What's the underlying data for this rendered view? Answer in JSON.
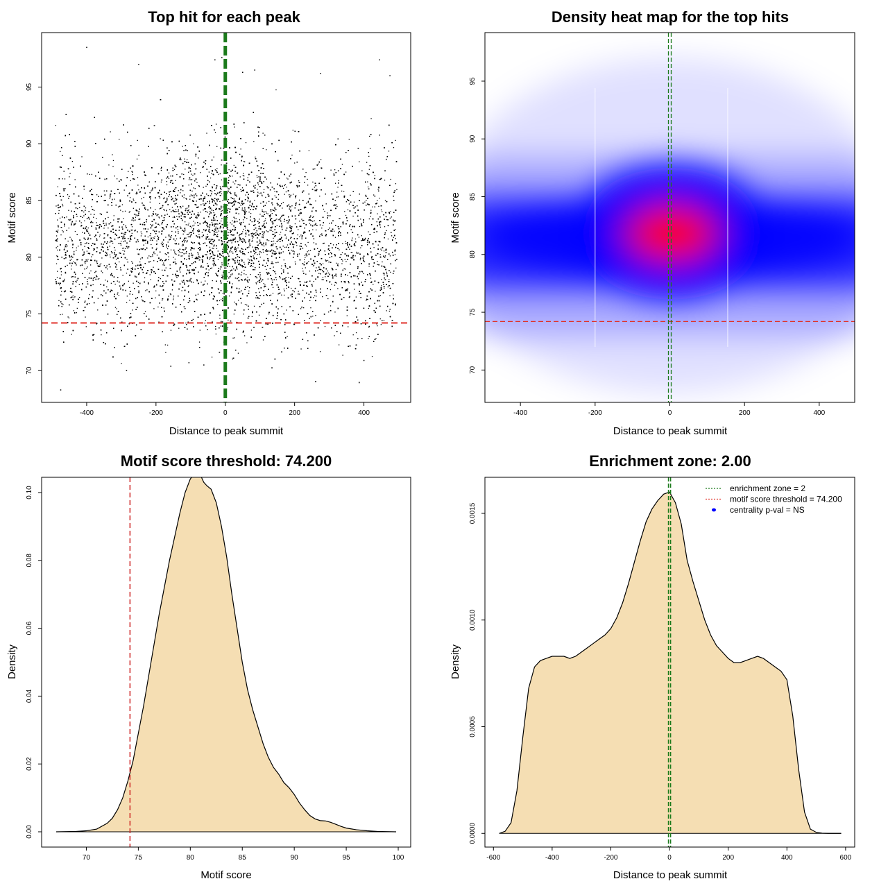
{
  "chart_data": [
    {
      "panel": "top-left",
      "type": "scatter",
      "title": "Top hit for each peak",
      "xlabel": "Distance to peak summit",
      "ylabel": "Motif score",
      "xlim": [
        -530,
        535
      ],
      "ylim": [
        67.2,
        99.8
      ],
      "xticks": [
        -400,
        -200,
        0,
        200,
        400
      ],
      "yticks": [
        70,
        75,
        80,
        85,
        90,
        95
      ],
      "x_range_of_points": [
        -490,
        495
      ],
      "y_center": 81,
      "point_count_approx": 20000,
      "outlier_points": [
        {
          "x": -475,
          "y": 68.3
        },
        {
          "x": -400,
          "y": 98.5
        },
        {
          "x": -10,
          "y": 97.6
        },
        {
          "x": -30,
          "y": 97.4
        },
        {
          "x": -250,
          "y": 97.0
        },
        {
          "x": 445,
          "y": 97.4
        },
        {
          "x": 275,
          "y": 96.2
        },
        {
          "x": 50,
          "y": 96.3
        },
        {
          "x": 85,
          "y": 96.5
        },
        {
          "x": -285,
          "y": 70.0
        },
        {
          "x": -105,
          "y": 70.7
        },
        {
          "x": -62,
          "y": 70.5
        },
        {
          "x": 400,
          "y": 70.9
        },
        {
          "x": 475,
          "y": 96.0
        }
      ],
      "threshold_line": {
        "y": 74.2,
        "color": "#e0322b",
        "style": "dashed"
      },
      "center_line": {
        "x": 0,
        "color": "#1b7a1b",
        "style": "dashed"
      }
    },
    {
      "panel": "top-right",
      "type": "heatmap",
      "title": "Density heat map for the top hits",
      "xlabel": "Distance to peak summit",
      "ylabel": "Motif score",
      "xlim": [
        -495,
        495
      ],
      "ylim": [
        67.2,
        99.2
      ],
      "xticks": [
        -400,
        -200,
        0,
        200,
        400
      ],
      "yticks": [
        70,
        75,
        80,
        85,
        90,
        95
      ],
      "peak_center": {
        "x": 5,
        "y": 81.8
      },
      "low_color": "#ffffff",
      "mid_color": "#0000ff",
      "high_color": "#ff0000",
      "threshold_line": {
        "y": 74.2,
        "color": "#e0322b",
        "style": "dashed"
      },
      "center_line": {
        "x": 0,
        "color": "#1b7a1b",
        "style": "dashed"
      }
    },
    {
      "panel": "bottom-left",
      "type": "area",
      "title": "Motif score threshold: 74.200",
      "xlabel": "Motif score",
      "ylabel": "Density",
      "xlim": [
        65.7,
        101.2
      ],
      "ylim": [
        -0.0045,
        0.1045
      ],
      "xticks": [
        70,
        75,
        80,
        85,
        90,
        95,
        100
      ],
      "ytick_labels": [
        "0.00",
        "0.02",
        "0.04",
        "0.06",
        "0.08",
        "0.10"
      ],
      "ytick_values": [
        0,
        0.02,
        0.04,
        0.06,
        0.08,
        0.1
      ],
      "x": [
        67.1,
        69,
        70,
        71,
        72,
        72.5,
        73,
        73.5,
        74,
        74.5,
        75,
        75.5,
        76,
        76.5,
        77,
        77.5,
        78,
        78.5,
        79,
        79.5,
        80,
        80.5,
        81,
        81.3,
        81.6,
        82,
        82.5,
        83,
        83.5,
        84,
        84.5,
        85,
        85.5,
        86,
        86.5,
        87,
        87.5,
        88,
        88.5,
        89,
        89.5,
        90,
        90.5,
        91,
        91.5,
        92,
        92.5,
        93,
        93.5,
        94,
        94.5,
        95,
        96,
        97,
        98,
        99.8
      ],
      "values": [
        0,
        0.0001,
        0.0003,
        0.0008,
        0.0025,
        0.004,
        0.0065,
        0.01,
        0.015,
        0.021,
        0.029,
        0.037,
        0.046,
        0.055,
        0.064,
        0.072,
        0.08,
        0.087,
        0.094,
        0.1,
        0.104,
        0.106,
        0.105,
        0.103,
        0.102,
        0.101,
        0.097,
        0.09,
        0.081,
        0.07,
        0.06,
        0.05,
        0.042,
        0.036,
        0.031,
        0.026,
        0.022,
        0.019,
        0.017,
        0.0145,
        0.013,
        0.011,
        0.0085,
        0.0065,
        0.0048,
        0.0038,
        0.0033,
        0.0032,
        0.0028,
        0.0022,
        0.0016,
        0.0011,
        0.0006,
        0.0003,
        0.0001,
        0
      ],
      "fill": "#f5deb3",
      "threshold_line": {
        "x": 74.2,
        "color": "#cc2222",
        "style": "dashed"
      }
    },
    {
      "panel": "bottom-right",
      "type": "area",
      "title": "Enrichment zone: 2.00",
      "xlabel": "Distance to peak summit",
      "ylabel": "Density",
      "xlim": [
        -629,
        631
      ],
      "ylim": [
        -6.42e-05,
        0.001669
      ],
      "xticks": [
        -600,
        -400,
        -200,
        0,
        200,
        400,
        600
      ],
      "ytick_labels": [
        "0.0000",
        "0.0005",
        "0.0010",
        "0.0015"
      ],
      "ytick_values": [
        0,
        0.0005,
        0.001,
        0.0015
      ],
      "x": [
        -580,
        -560,
        -540,
        -520,
        -500,
        -480,
        -460,
        -440,
        -420,
        -400,
        -380,
        -360,
        -340,
        -320,
        -300,
        -280,
        -260,
        -240,
        -220,
        -200,
        -180,
        -160,
        -140,
        -120,
        -100,
        -80,
        -60,
        -40,
        -20,
        0,
        20,
        40,
        60,
        80,
        100,
        120,
        140,
        160,
        180,
        200,
        220,
        240,
        260,
        280,
        300,
        320,
        340,
        360,
        380,
        400,
        420,
        440,
        460,
        480,
        500,
        520,
        540,
        560,
        585
      ],
      "values": [
        0,
        1e-05,
        5e-05,
        0.0002,
        0.00045,
        0.00068,
        0.00078,
        0.00081,
        0.00082,
        0.00083,
        0.00083,
        0.00083,
        0.00082,
        0.00083,
        0.00085,
        0.00087,
        0.00089,
        0.00091,
        0.00093,
        0.00096,
        0.00101,
        0.00108,
        0.00117,
        0.00127,
        0.00137,
        0.00146,
        0.00152,
        0.00156,
        0.00159,
        0.0016,
        0.00155,
        0.00145,
        0.00128,
        0.00118,
        0.00109,
        0.001,
        0.00093,
        0.00088,
        0.00085,
        0.00082,
        0.0008,
        0.0008,
        0.00081,
        0.00082,
        0.00083,
        0.00082,
        0.0008,
        0.00078,
        0.00076,
        0.00072,
        0.00055,
        0.0003,
        0.0001,
        2e-05,
        5e-06,
        1e-06,
        0,
        0,
        0
      ],
      "fill": "#f5deb3",
      "center_line": {
        "x": 0,
        "color": "#1b7a1b",
        "style": "dashed"
      },
      "legend": {
        "position": "top-right",
        "entries": [
          {
            "label": "enrichment zone = 2",
            "color": "#1b7a1b",
            "style": "dotted"
          },
          {
            "label": "motif score threshold = 74.200",
            "color": "#e0322b",
            "style": "dotted"
          },
          {
            "label": "centrality p-val = NS",
            "color": "#0000ff",
            "style": "point"
          }
        ]
      }
    }
  ]
}
